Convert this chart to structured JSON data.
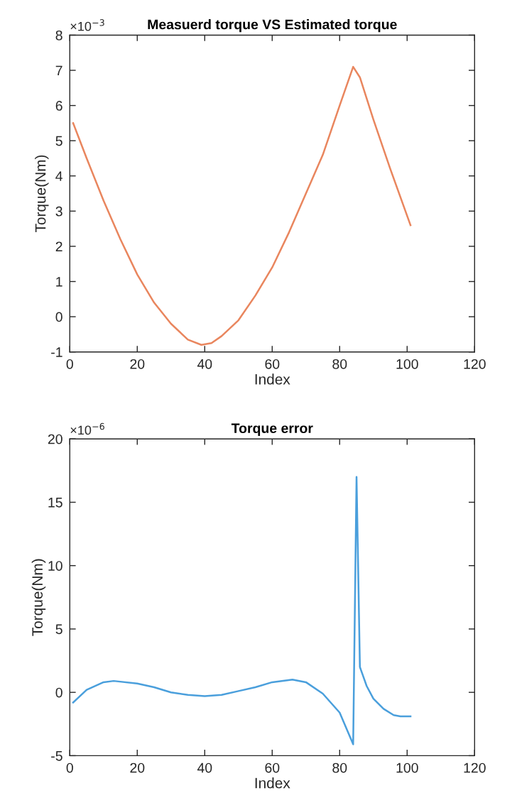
{
  "chart_data": [
    {
      "type": "line",
      "title": "Measuerd torque VS Estimated torque",
      "xlabel": "Index",
      "ylabel": "Torque(Nm)",
      "annotations": [
        "×10$^{−3}$"
      ],
      "xlim": [
        0,
        120
      ],
      "xticks": [
        0,
        20,
        40,
        60,
        80,
        100,
        120
      ],
      "ylim": [
        -1,
        8
      ],
      "yticks": [
        -1,
        0,
        1,
        2,
        3,
        4,
        5,
        6,
        7,
        8
      ],
      "series": [
        {
          "color": "#e9865e",
          "x": [
            1,
            5,
            10,
            15,
            20,
            25,
            30,
            35,
            39,
            42,
            45,
            50,
            55,
            60,
            65,
            70,
            75,
            80,
            84,
            86,
            90,
            95,
            101
          ],
          "values": [
            5.5,
            4.5,
            3.3,
            2.2,
            1.2,
            0.4,
            -0.2,
            -0.65,
            -0.8,
            -0.75,
            -0.55,
            -0.1,
            0.6,
            1.4,
            2.4,
            3.5,
            4.6,
            6.0,
            7.1,
            6.8,
            5.6,
            4.2,
            2.6
          ]
        }
      ]
    },
    {
      "type": "line",
      "title": "Torque error",
      "xlabel": "Index",
      "ylabel": "Torque(Nm)",
      "annotations": [
        "×10$^{−6}$"
      ],
      "xlim": [
        0,
        120
      ],
      "xticks": [
        0,
        20,
        40,
        60,
        80,
        100,
        120
      ],
      "ylim": [
        -5,
        20
      ],
      "yticks": [
        -5,
        0,
        5,
        10,
        15,
        20
      ],
      "series": [
        {
          "color": "#4a9fdc",
          "x": [
            1,
            5,
            10,
            13,
            20,
            25,
            30,
            35,
            40,
            45,
            50,
            55,
            60,
            66,
            70,
            75,
            80,
            84,
            85,
            86,
            88,
            90,
            93,
            96,
            98,
            101
          ],
          "values": [
            -0.8,
            0.2,
            0.8,
            0.9,
            0.7,
            0.4,
            0.0,
            -0.2,
            -0.3,
            -0.2,
            0.1,
            0.4,
            0.8,
            1.0,
            0.8,
            -0.1,
            -1.6,
            -4.1,
            17.0,
            2.0,
            0.5,
            -0.5,
            -1.3,
            -1.8,
            -1.9,
            -1.9
          ]
        }
      ]
    }
  ]
}
